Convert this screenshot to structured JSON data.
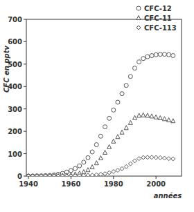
{
  "chart_data": {
    "type": "scatter",
    "y_label": "CFC en pptv",
    "x_label": "années",
    "x": [
      1940,
      1942,
      1944,
      1946,
      1948,
      1950,
      1952,
      1954,
      1956,
      1958,
      1960,
      1962,
      1964,
      1966,
      1968,
      1970,
      1972,
      1974,
      1976,
      1978,
      1980,
      1982,
      1984,
      1986,
      1988,
      1990,
      1992,
      1994,
      1996,
      1998,
      2000,
      2002,
      2004,
      2006,
      2008
    ],
    "series": [
      {
        "name": "CFC-12",
        "color": "#555555",
        "marker": "circle",
        "values": [
          0,
          0,
          1,
          1,
          2,
          3,
          5,
          8,
          12,
          18,
          25,
          34,
          46,
          62,
          82,
          108,
          140,
          178,
          220,
          258,
          295,
          330,
          368,
          405,
          445,
          482,
          510,
          525,
          533,
          538,
          542,
          544,
          544,
          542,
          538
        ]
      },
      {
        "name": "CFC-11",
        "color": "#555555",
        "marker": "triangle",
        "values": [
          0,
          0,
          0,
          0,
          0,
          0,
          1,
          1,
          2,
          3,
          5,
          8,
          12,
          18,
          27,
          40,
          58,
          80,
          105,
          130,
          155,
          175,
          195,
          215,
          238,
          260,
          270,
          272,
          270,
          267,
          263,
          259,
          255,
          250,
          246
        ]
      },
      {
        "name": "CFC-113",
        "color": "#555555",
        "marker": "diamond",
        "values": [
          0,
          0,
          0,
          0,
          0,
          0,
          0,
          0,
          0,
          0,
          0,
          1,
          1,
          2,
          3,
          4,
          6,
          8,
          11,
          15,
          20,
          26,
          33,
          42,
          55,
          68,
          78,
          83,
          84,
          84,
          83,
          82,
          80,
          78,
          77
        ]
      }
    ],
    "xlim": [
      1939,
      2012
    ],
    "xticks": [
      1940,
      1960,
      1980,
      2000
    ],
    "ylim": [
      0,
      700
    ],
    "yticks": [
      0,
      100,
      200,
      300,
      400,
      500,
      600,
      700
    ],
    "grid": false,
    "legend": "top-right"
  }
}
